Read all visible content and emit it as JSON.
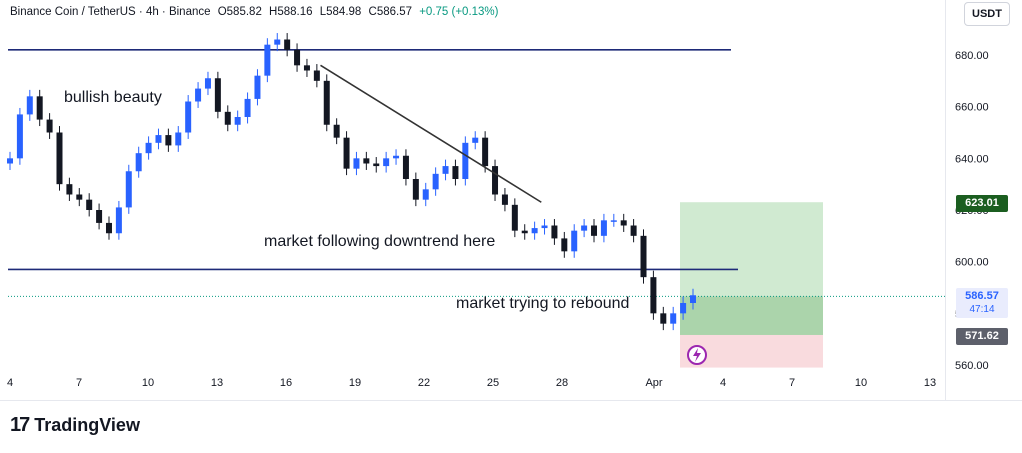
{
  "header": {
    "symbol": "Binance Coin / TetherUS · 4h · Binance",
    "open": "O585.82",
    "high": "H588.16",
    "low": "L584.98",
    "close": "C586.57",
    "change": "+0.75 (+0.13%)"
  },
  "currency_button": "USDT",
  "annotations": {
    "top_left": "bullish beauty",
    "middle": "market following downtrend here",
    "bottom": "market trying to rebound"
  },
  "price_tags": {
    "target": "623.01",
    "current": "586.57",
    "countdown": "47:14",
    "stop": "571.62"
  },
  "footer": {
    "logo_text": "TradingView"
  },
  "colors": {
    "up": "#2962ff",
    "down": "#131722",
    "level_line": "#1e2a78",
    "profit_zone": "#c8e6c9",
    "loss_zone": "#f8d7da",
    "current_line": "#089981"
  },
  "chart_data": {
    "type": "line",
    "title": "Binance Coin / TetherUS · 4h · Binance",
    "xlabel": "",
    "ylabel": "",
    "x_ticks": [
      "4",
      "7",
      "10",
      "13",
      "16",
      "19",
      "22",
      "25",
      "28",
      "Apr",
      "4",
      "7",
      "10",
      "13"
    ],
    "y_ticks": [
      "680.00",
      "660.00",
      "640.00",
      "620.00",
      "600.00",
      "580.00",
      "560.00"
    ],
    "ylim": [
      558,
      695
    ],
    "grid": false,
    "series": [
      {
        "values": [
          640,
          657,
          664,
          655,
          650,
          630,
          626,
          624,
          620,
          615,
          611,
          621,
          635,
          642,
          646,
          649,
          645,
          650,
          662,
          667,
          671,
          658,
          653,
          656,
          663,
          672,
          684,
          686,
          682,
          676,
          674,
          670,
          653,
          648,
          636,
          640,
          638,
          637,
          640,
          641,
          632,
          624,
          628,
          634,
          637,
          632,
          646,
          648,
          637,
          626,
          622,
          612,
          611,
          613,
          614,
          609,
          604,
          612,
          614,
          610,
          616,
          616,
          614,
          610,
          594,
          580,
          576,
          580,
          584,
          587
        ]
      }
    ],
    "horizontal_levels": [
      682,
      597,
      586.57
    ],
    "trendline": {
      "from": [
        17.5,
        676
      ],
      "to": [
        27.1,
        623
      ]
    },
    "position": {
      "entry": 586.57,
      "target": 623.01,
      "stop": 571.62
    }
  }
}
